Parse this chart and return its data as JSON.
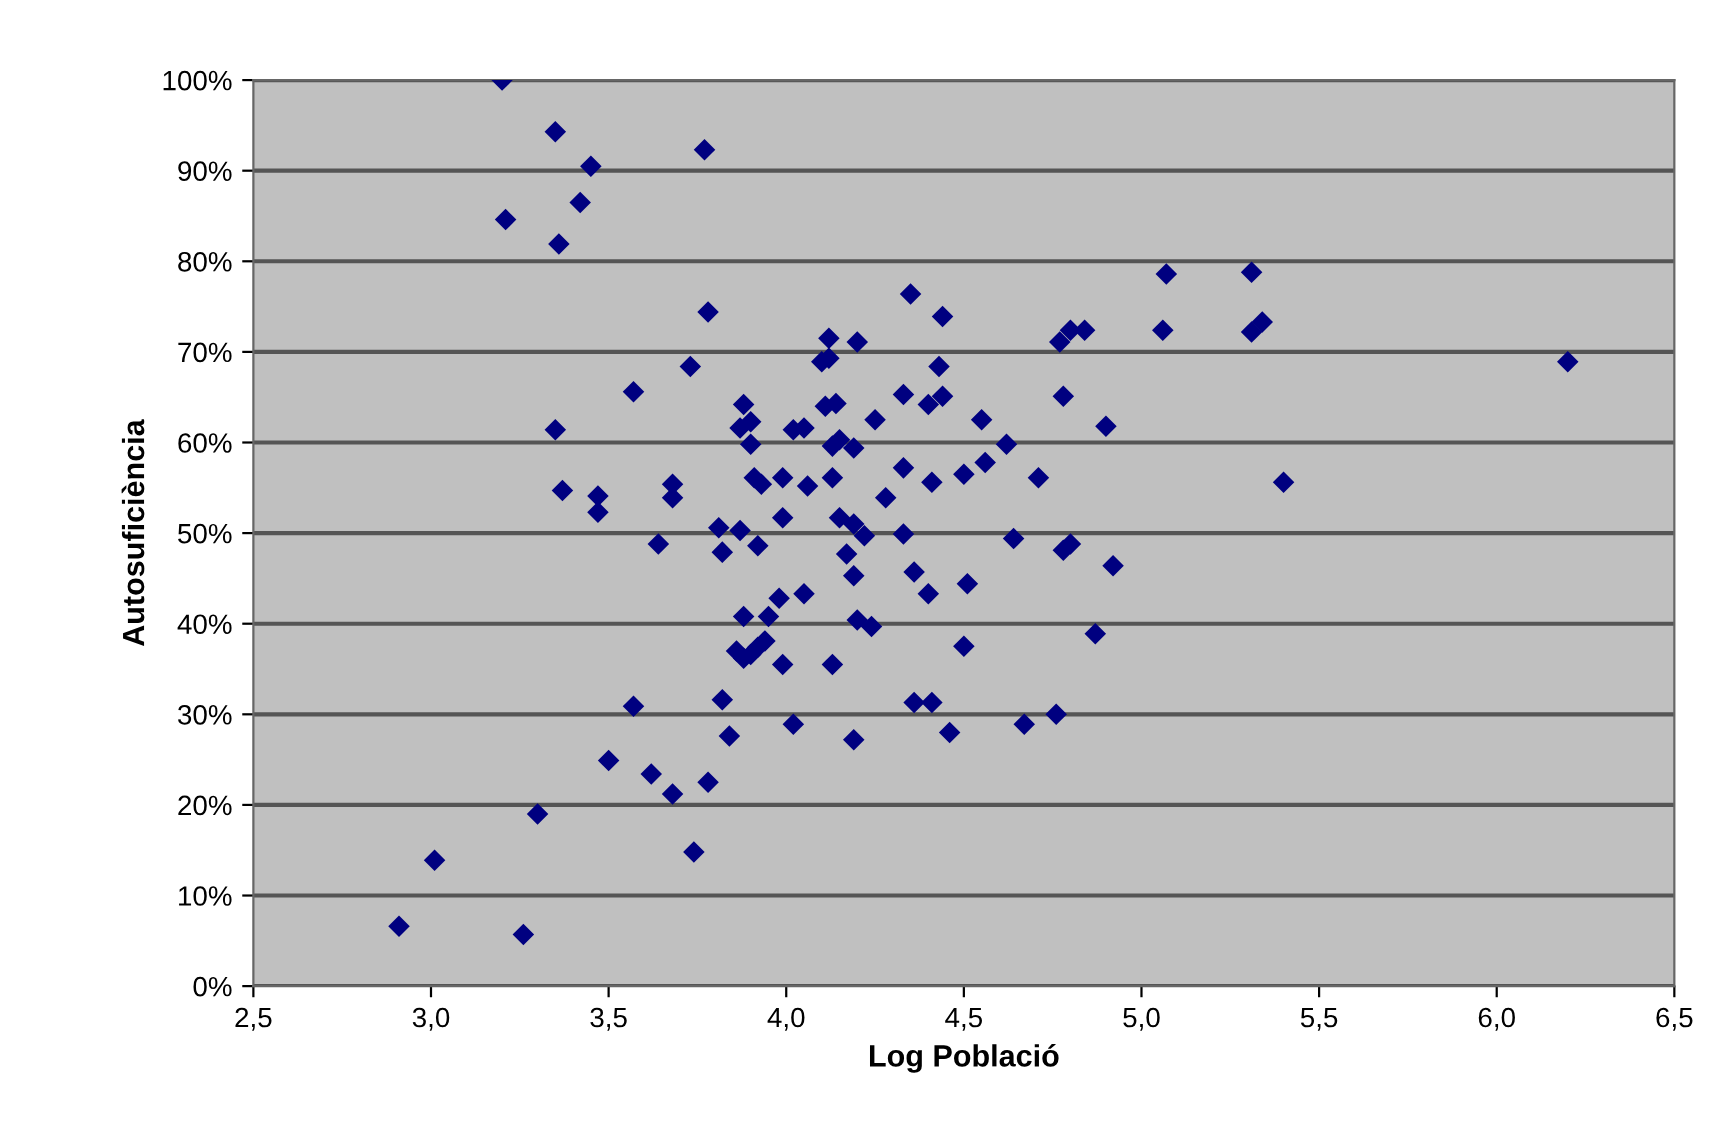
{
  "chart_data": {
    "type": "scatter",
    "xlabel": "Log Població",
    "ylabel": "Autosuficiència",
    "x": [
      3.2,
      3.35,
      3.77,
      3.45,
      3.42,
      3.21,
      3.36,
      3.78,
      3.73,
      3.57,
      3.35,
      3.37,
      3.47,
      3.47,
      3.68,
      3.68,
      3.64,
      3.81,
      3.82,
      3.57,
      3.82,
      3.84,
      3.5,
      3.62,
      3.68,
      3.78,
      3.3,
      3.01,
      2.91,
      3.26,
      3.74,
      4.35,
      4.44,
      4.12,
      4.2,
      4.1,
      4.12,
      4.43,
      4.33,
      4.4,
      4.44,
      4.77,
      4.8,
      4.84,
      5.07,
      5.06,
      4.78,
      4.9,
      4.55,
      4.62,
      4.25,
      4.11,
      4.14,
      3.88,
      3.87,
      3.9,
      3.9,
      4.02,
      4.05,
      4.13,
      4.15,
      4.19,
      3.91,
      3.93,
      3.99,
      4.06,
      4.13,
      4.28,
      4.33,
      4.41,
      4.5,
      4.56,
      4.71,
      3.99,
      4.15,
      4.19,
      4.22,
      4.33,
      3.87,
      3.92,
      4.17,
      4.64,
      4.78,
      4.8,
      4.92,
      4.19,
      4.36,
      4.4,
      4.51,
      3.98,
      4.05,
      3.88,
      3.95,
      4.2,
      4.24,
      4.87,
      3.86,
      3.88,
      3.9,
      3.92,
      3.94,
      3.99,
      4.13,
      4.5,
      4.36,
      4.41,
      4.02,
      4.19,
      4.46,
      4.67,
      4.76,
      5.31,
      5.31,
      5.34,
      6.2,
      5.4
    ],
    "values": [
      100,
      94.3,
      92.3,
      90.5,
      86.5,
      84.6,
      81.9,
      74.4,
      68.4,
      65.6,
      61.4,
      54.7,
      54.1,
      52.3,
      55.4,
      53.9,
      48.8,
      50.6,
      47.9,
      30.9,
      31.6,
      27.6,
      24.9,
      23.4,
      21.2,
      22.5,
      19.0,
      13.9,
      6.6,
      5.7,
      14.8,
      76.4,
      73.9,
      71.5,
      71.1,
      68.9,
      69.3,
      68.4,
      65.3,
      64.2,
      65.1,
      71.1,
      72.4,
      72.4,
      78.6,
      72.4,
      65.1,
      61.8,
      62.5,
      59.8,
      62.5,
      64.0,
      64.3,
      64.2,
      61.6,
      62.3,
      59.8,
      61.4,
      61.6,
      59.6,
      60.3,
      59.4,
      56.1,
      55.4,
      56.1,
      55.2,
      56.1,
      53.9,
      57.2,
      55.6,
      56.5,
      57.8,
      56.1,
      51.7,
      51.7,
      51.0,
      49.7,
      49.9,
      50.3,
      48.6,
      47.7,
      49.4,
      48.1,
      48.8,
      46.4,
      45.3,
      45.7,
      43.3,
      44.4,
      42.8,
      43.3,
      40.8,
      40.8,
      40.4,
      39.7,
      38.9,
      37.0,
      36.2,
      36.6,
      37.4,
      38.1,
      35.5,
      35.5,
      37.5,
      31.3,
      31.3,
      28.9,
      27.2,
      28.0,
      28.9,
      30.0,
      78.8,
      72.2,
      73.3,
      68.9,
      55.6
    ],
    "color": "#000080",
    "marker": "diamond",
    "xlim": [
      2.5,
      6.5
    ],
    "xticks": [
      {
        "value": 2.5,
        "label": "2,5"
      },
      {
        "value": 3.0,
        "label": "3,0"
      },
      {
        "value": 3.5,
        "label": "3,5"
      },
      {
        "value": 4.0,
        "label": "4,0"
      },
      {
        "value": 4.5,
        "label": "4,5"
      },
      {
        "value": 5.0,
        "label": "5,0"
      },
      {
        "value": 5.5,
        "label": "5,5"
      },
      {
        "value": 6.0,
        "label": "6,0"
      },
      {
        "value": 6.5,
        "label": "6,5"
      }
    ],
    "ylim": [
      0,
      100
    ],
    "yticks": [
      {
        "value": 0,
        "label": "0%"
      },
      {
        "value": 10,
        "label": "10%"
      },
      {
        "value": 20,
        "label": "20%"
      },
      {
        "value": 30,
        "label": "30%"
      },
      {
        "value": 40,
        "label": "40%"
      },
      {
        "value": 50,
        "label": "50%"
      },
      {
        "value": 60,
        "label": "60%"
      },
      {
        "value": 70,
        "label": "70%"
      },
      {
        "value": 80,
        "label": "80%"
      },
      {
        "value": 90,
        "label": "90%"
      },
      {
        "value": 100,
        "label": "100%"
      }
    ],
    "grid": "y"
  }
}
